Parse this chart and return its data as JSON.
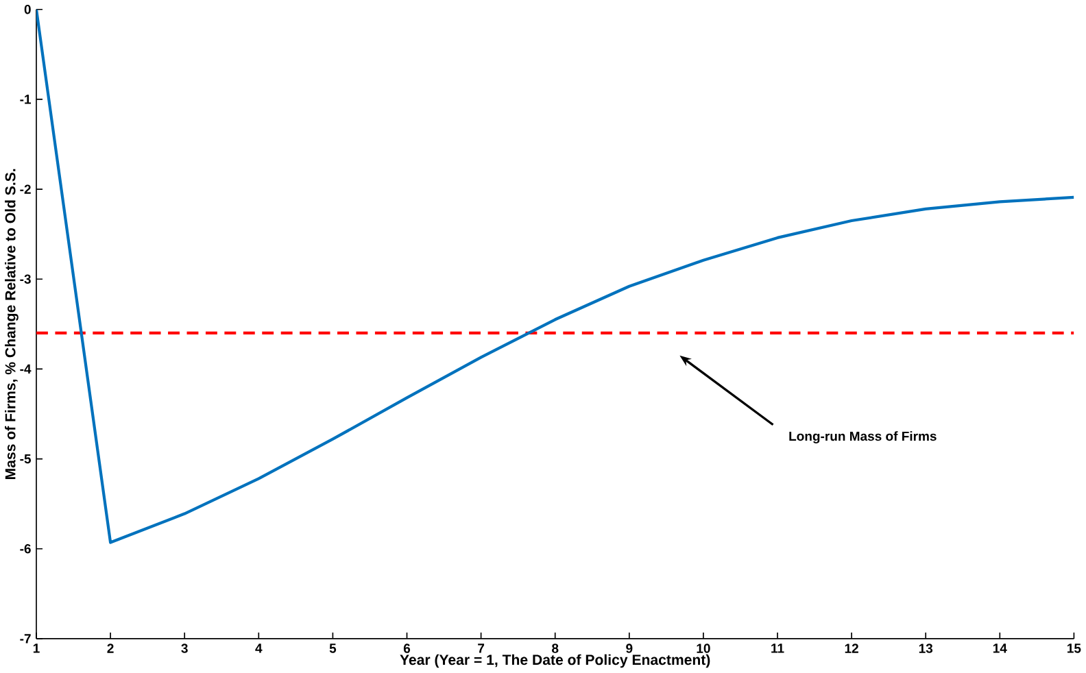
{
  "chart_data": {
    "type": "line",
    "xlabel": "Year  (Year = 1, The Date of Policy Enactment)",
    "ylabel": "Mass of Firms, % Change Relative to Old S.S.",
    "x": [
      1,
      2,
      3,
      4,
      5,
      6,
      7,
      8,
      9,
      10,
      11,
      12,
      13,
      14,
      15
    ],
    "series": [
      {
        "color": "#0072bd",
        "values": [
          0,
          -5.93,
          -5.61,
          -5.22,
          -4.78,
          -4.32,
          -3.87,
          -3.45,
          -3.08,
          -2.79,
          -2.54,
          -2.35,
          -2.22,
          -2.14,
          -2.09
        ]
      }
    ],
    "xlim": [
      1,
      15
    ],
    "xticks": [
      1,
      2,
      3,
      4,
      5,
      6,
      7,
      8,
      9,
      10,
      11,
      12,
      13,
      14,
      15
    ],
    "ylim": [
      -7,
      0
    ],
    "yticks": [
      -7,
      -6,
      -5,
      -4,
      -3,
      -2,
      -1,
      0
    ],
    "ref_lines": [
      {
        "axis": "y",
        "value": -3.6,
        "color": "#ff0000",
        "line_style": "dashed"
      }
    ],
    "annotations": [
      "Long-run Mass of Firms"
    ],
    "grid": false,
    "marker": "none",
    "line_style": "solid"
  }
}
